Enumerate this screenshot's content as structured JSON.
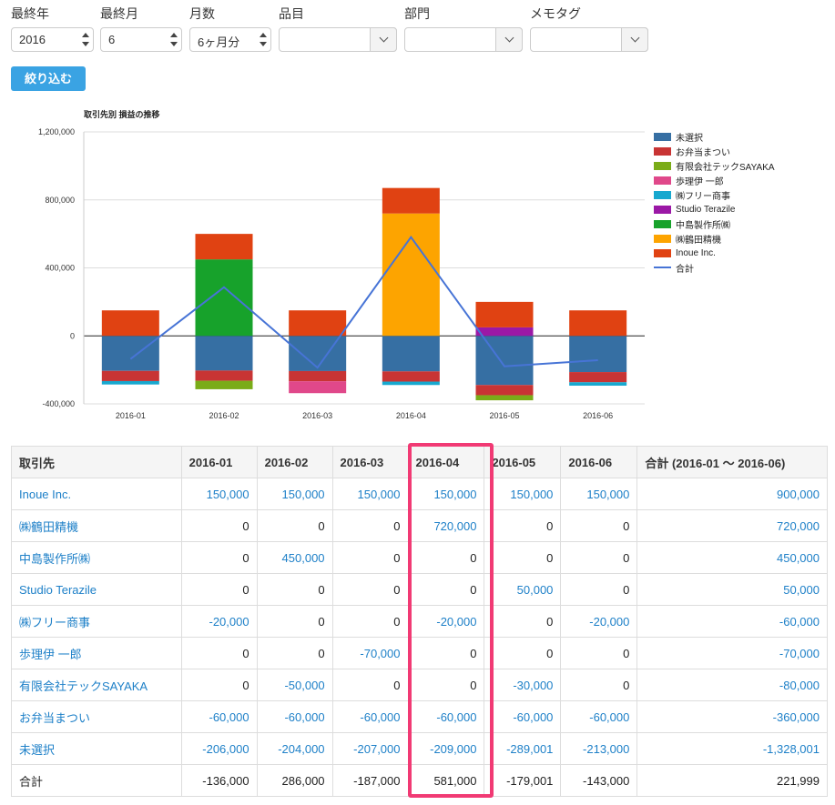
{
  "filters": {
    "year_label": "最終年",
    "year_value": "2016",
    "month_label": "最終月",
    "month_value": "6",
    "span_label": "月数",
    "span_value": "6ヶ月分",
    "item_label": "品目",
    "dept_label": "部門",
    "tag_label": "メモタグ",
    "item_value": "",
    "dept_value": "",
    "tag_value": ""
  },
  "submit_label": "絞り込む",
  "chart_data": {
    "type": "bar",
    "stacked": true,
    "title": "取引先別 損益の推移",
    "categories": [
      "2016-01",
      "2016-02",
      "2016-03",
      "2016-04",
      "2016-05",
      "2016-06"
    ],
    "ylim": [
      -400000,
      1200000
    ],
    "yticks": [
      "1,200,000",
      "800,000",
      "400,000",
      "0",
      "-400,000"
    ],
    "ytick_values": [
      1200000,
      800000,
      400000,
      0,
      -400000
    ],
    "series": [
      {
        "name": "未選択",
        "color": "#366fa3",
        "values": [
          -206000,
          -204000,
          -207000,
          -209000,
          -289001,
          -213000
        ]
      },
      {
        "name": "お弁当まつい",
        "color": "#c83434",
        "values": [
          -60000,
          -60000,
          -60000,
          -60000,
          -60000,
          -60000
        ]
      },
      {
        "name": "有限会社テックSAYAKA",
        "color": "#7aac18",
        "values": [
          0,
          -50000,
          0,
          0,
          -30000,
          0
        ]
      },
      {
        "name": "歩理伊 一郎",
        "color": "#e0488a",
        "values": [
          0,
          0,
          -70000,
          0,
          0,
          0
        ]
      },
      {
        "name": "㈱フリー商事",
        "color": "#17a8cf",
        "values": [
          -20000,
          0,
          0,
          -20000,
          0,
          -20000
        ]
      },
      {
        "name": "Studio Terazile",
        "color": "#9b18a6",
        "values": [
          0,
          0,
          0,
          0,
          50000,
          0
        ]
      },
      {
        "name": "中島製作所㈱",
        "color": "#17a22b",
        "values": [
          0,
          450000,
          0,
          0,
          0,
          0
        ]
      },
      {
        "name": "㈱鶴田精機",
        "color": "#fda400",
        "values": [
          0,
          0,
          0,
          720000,
          0,
          0
        ]
      },
      {
        "name": "Inoue Inc.",
        "color": "#e04212",
        "values": [
          150000,
          150000,
          150000,
          150000,
          150000,
          150000
        ]
      }
    ],
    "line": {
      "name": "合計",
      "color": "#4774d6",
      "values": [
        -136000,
        286000,
        -187000,
        581000,
        -179001,
        -143000
      ]
    }
  },
  "table": {
    "headers": [
      "取引先",
      "2016-01",
      "2016-02",
      "2016-03",
      "2016-04",
      "2016-05",
      "2016-06",
      "合計 (2016-01 〜 2016-06)"
    ],
    "rows": [
      [
        "Inoue Inc.",
        "150,000",
        "150,000",
        "150,000",
        "150,000",
        "150,000",
        "150,000",
        "900,000"
      ],
      [
        "㈱鶴田精機",
        "0",
        "0",
        "0",
        "720,000",
        "0",
        "0",
        "720,000"
      ],
      [
        "中島製作所㈱",
        "0",
        "450,000",
        "0",
        "0",
        "0",
        "0",
        "450,000"
      ],
      [
        "Studio Terazile",
        "0",
        "0",
        "0",
        "0",
        "50,000",
        "0",
        "50,000"
      ],
      [
        "㈱フリー商事",
        "-20,000",
        "0",
        "0",
        "-20,000",
        "0",
        "-20,000",
        "-60,000"
      ],
      [
        "歩理伊 一郎",
        "0",
        "0",
        "-70,000",
        "0",
        "0",
        "0",
        "-70,000"
      ],
      [
        "有限会社テックSAYAKA",
        "0",
        "-50,000",
        "0",
        "0",
        "-30,000",
        "0",
        "-80,000"
      ],
      [
        "お弁当まつい",
        "-60,000",
        "-60,000",
        "-60,000",
        "-60,000",
        "-60,000",
        "-60,000",
        "-360,000"
      ],
      [
        "未選択",
        "-206,000",
        "-204,000",
        "-207,000",
        "-209,000",
        "-289,001",
        "-213,000",
        "-1,328,001"
      ],
      [
        "合計",
        "-136,000",
        "286,000",
        "-187,000",
        "581,000",
        "-179,001",
        "-143,000",
        "221,999"
      ]
    ]
  },
  "colors": {
    "highlight": "#f13a74",
    "link": "#1e80c8",
    "button": "#3aa3e3"
  }
}
